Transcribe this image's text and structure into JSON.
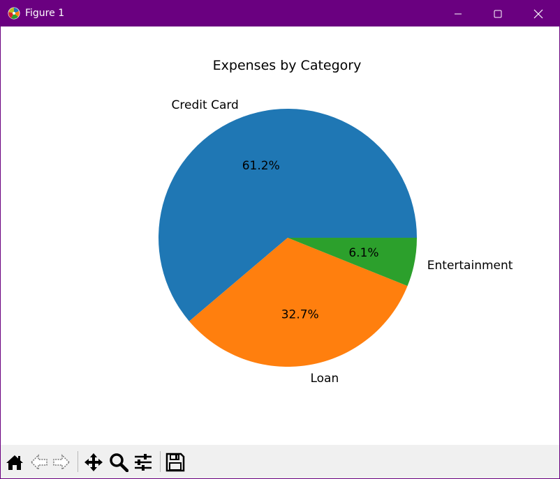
{
  "window": {
    "title": "Figure 1",
    "icons": {
      "app": "matplotlib-icon",
      "minimize": "minimize-icon",
      "maximize": "maximize-icon",
      "close": "close-icon"
    },
    "titlebar_color": "#6a0080"
  },
  "toolbar": {
    "items": [
      {
        "name": "home-icon"
      },
      {
        "name": "back-arrow-icon"
      },
      {
        "name": "forward-arrow-icon"
      },
      {
        "name": "pan-icon"
      },
      {
        "name": "zoom-icon"
      },
      {
        "name": "configure-subplots-icon"
      },
      {
        "name": "save-icon"
      }
    ]
  },
  "chart_data": {
    "type": "pie",
    "title": "Expenses by Category",
    "slices": [
      {
        "label": "Credit Card",
        "value": 61.2,
        "pct_label": "61.2%",
        "color": "#1f77b4"
      },
      {
        "label": "Loan",
        "value": 32.7,
        "pct_label": "32.7%",
        "color": "#ff7f0e"
      },
      {
        "label": "Entertainment",
        "value": 6.1,
        "pct_label": "6.1%",
        "color": "#2ca02c"
      }
    ],
    "start_angle_deg": 0,
    "direction": "counterclockwise"
  }
}
